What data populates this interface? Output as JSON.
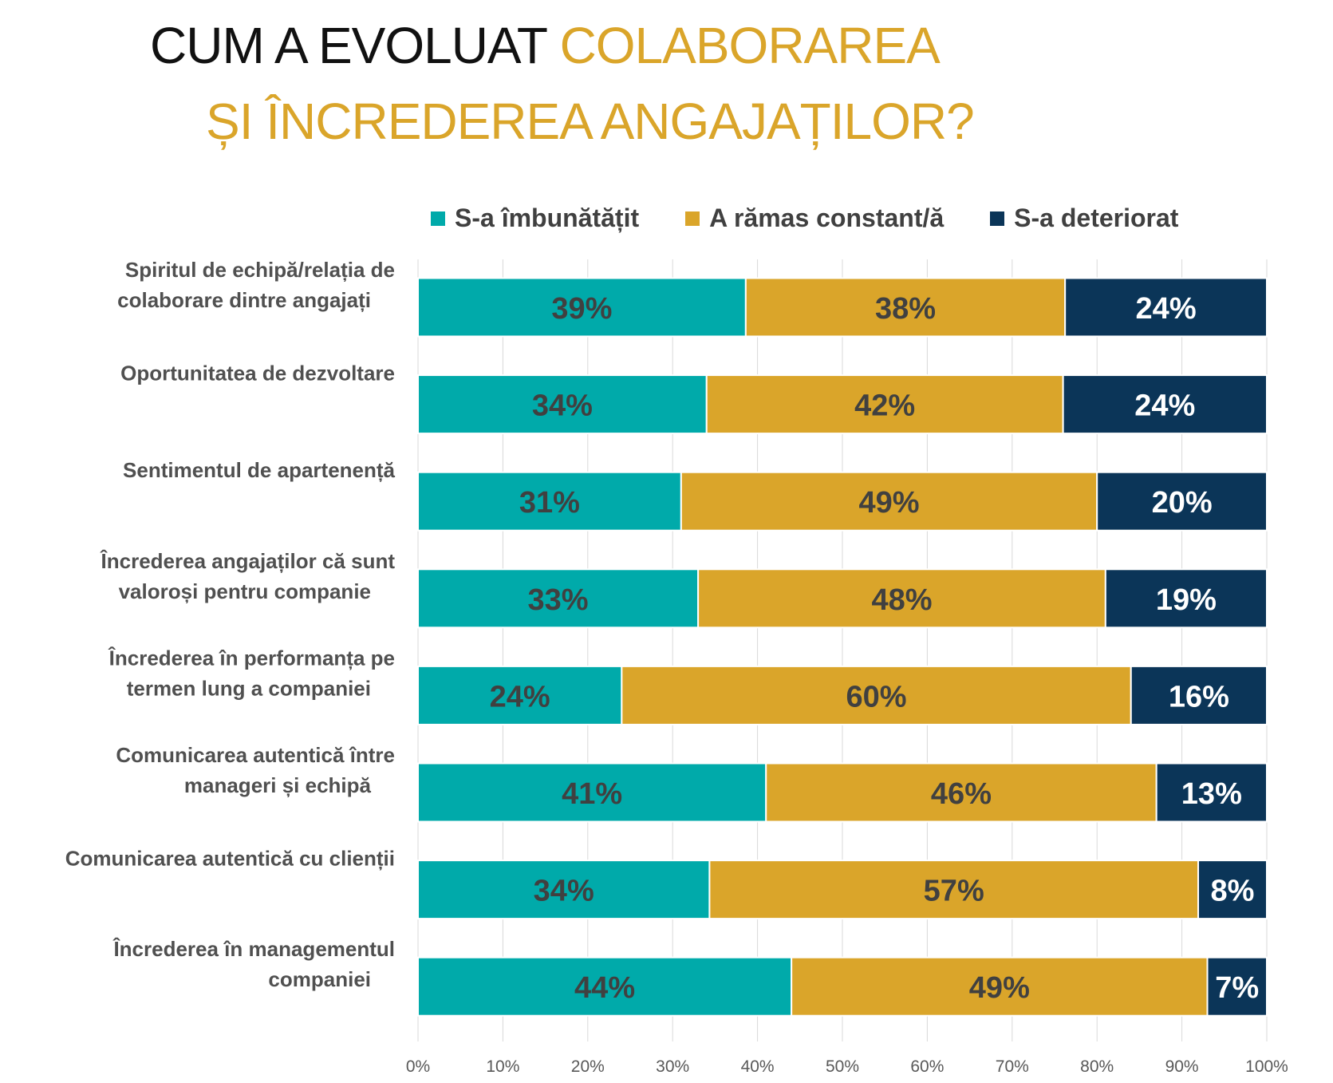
{
  "title": {
    "line1_dark": "CUM A EVOLUAT ",
    "line1_gold": "COLABORAREA",
    "line2_gold": "ȘI ÎNCREDEREA ANGAJAȚILOR?"
  },
  "colors": {
    "improved": "#00AAAA",
    "constant": "#DAA52A",
    "deteriorated": "#0B3558",
    "title_gold": "#DAA52A"
  },
  "chart_data": {
    "type": "bar",
    "orientation": "horizontal",
    "stacked": "100%",
    "title": "CUM A EVOLUAT COLABORAREA ȘI ÎNCREDEREA ANGAJAȚILOR?",
    "categories": [
      [
        "Spiritul de echipă/relația de",
        "colaborare dintre angajați"
      ],
      [
        "Oportunitatea de dezvoltare"
      ],
      [
        "Sentimentul de apartenență"
      ],
      [
        "Încrederea angajaților că sunt",
        "valoroși pentru companie"
      ],
      [
        "Încrederea în performanța pe",
        "termen lung a companiei"
      ],
      [
        "Comunicarea autentică între",
        "manageri și echipă"
      ],
      [
        "Comunicarea autentică cu clienții"
      ],
      [
        "Încrederea în managementul",
        "companiei"
      ]
    ],
    "series": [
      {
        "name": "S-a îmbunătățit",
        "color": "#00AAAA",
        "values": [
          39,
          34,
          31,
          33,
          24,
          41,
          34,
          44
        ]
      },
      {
        "name": "A rămas constant/ă",
        "color": "#DAA52A",
        "values": [
          38,
          42,
          49,
          48,
          60,
          46,
          57,
          49
        ]
      },
      {
        "name": "S-a deteriorat",
        "color": "#0B3558",
        "values": [
          24,
          24,
          20,
          19,
          16,
          13,
          8,
          7
        ]
      }
    ],
    "xlim": [
      0,
      100
    ],
    "xticks": [
      "0%",
      "10%",
      "20%",
      "30%",
      "40%",
      "50%",
      "60%",
      "70%",
      "80%",
      "90%",
      "100%"
    ],
    "grid": true,
    "legend": "top",
    "data_label_suffix": "%"
  }
}
